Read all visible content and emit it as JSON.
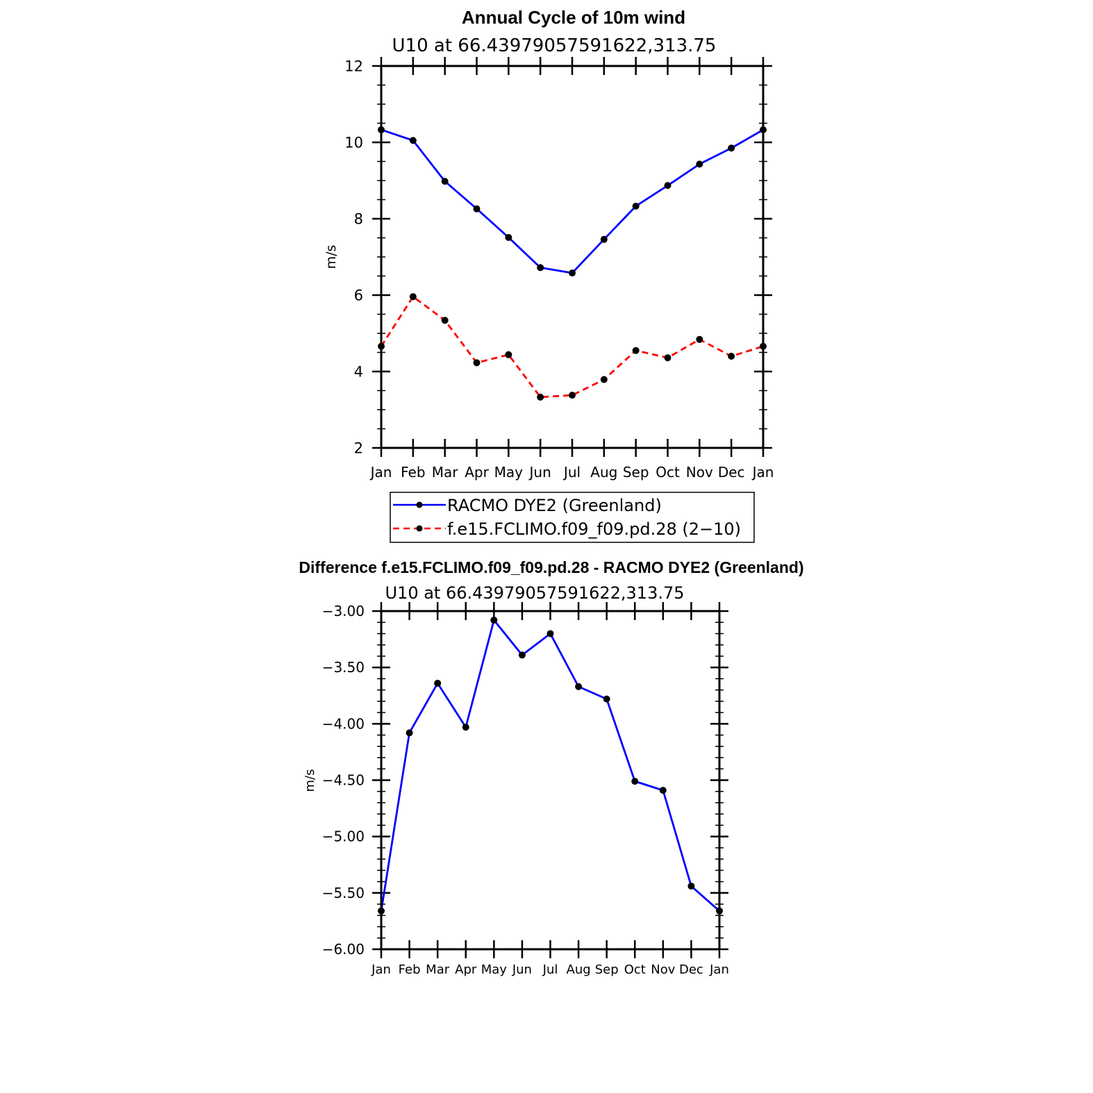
{
  "chart_data": [
    {
      "type": "line",
      "title": "Annual Cycle of 10m wind",
      "subtitle": "U10  at  66.43979057591622,313.75",
      "ylabel": "m/s",
      "xlabel": "",
      "categories": [
        "Jan",
        "Feb",
        "Mar",
        "Apr",
        "May",
        "Jun",
        "Jul",
        "Aug",
        "Sep",
        "Oct",
        "Nov",
        "Dec",
        "Jan"
      ],
      "ylim": [
        2,
        12
      ],
      "yticks": [
        "2",
        "4",
        "6",
        "8",
        "10",
        "12"
      ],
      "legend_position": "below",
      "series": [
        {
          "name": "RACMO DYE2 (Greenland)",
          "color": "#0000ff",
          "style": "solid",
          "values": [
            10.33,
            10.05,
            8.98,
            8.26,
            7.51,
            6.72,
            6.58,
            7.46,
            8.33,
            8.87,
            9.43,
            9.85,
            10.33
          ]
        },
        {
          "name": "f.e15.FCLIMO.f09_f09.pd.28 (2−10)",
          "color": "#ff0000",
          "style": "dashed",
          "values": [
            4.66,
            5.96,
            5.34,
            4.23,
            4.44,
            3.33,
            3.38,
            3.79,
            4.55,
            4.36,
            4.84,
            4.4,
            4.66
          ]
        }
      ]
    },
    {
      "type": "line",
      "title": "Difference f.e15.FCLIMO.f09_f09.pd.28 - RACMO DYE2 (Greenland)",
      "subtitle": "U10  at  66.43979057591622,313.75",
      "ylabel": "m/s",
      "xlabel": "",
      "categories": [
        "Jan",
        "Feb",
        "Mar",
        "Apr",
        "May",
        "Jun",
        "Jul",
        "Aug",
        "Sep",
        "Oct",
        "Nov",
        "Dec",
        "Jan"
      ],
      "ylim": [
        -6.0,
        -3.0
      ],
      "yticks": [
        "−6.00",
        "−5.50",
        "−5.00",
        "−4.50",
        "−4.00",
        "−3.50",
        "−3.00"
      ],
      "series": [
        {
          "name": "Difference",
          "color": "#0000ff",
          "style": "solid",
          "values": [
            -5.66,
            -4.08,
            -3.64,
            -4.03,
            -3.08,
            -3.39,
            -3.2,
            -3.67,
            -3.78,
            -4.51,
            -4.59,
            -5.44,
            -5.66
          ]
        }
      ]
    }
  ]
}
